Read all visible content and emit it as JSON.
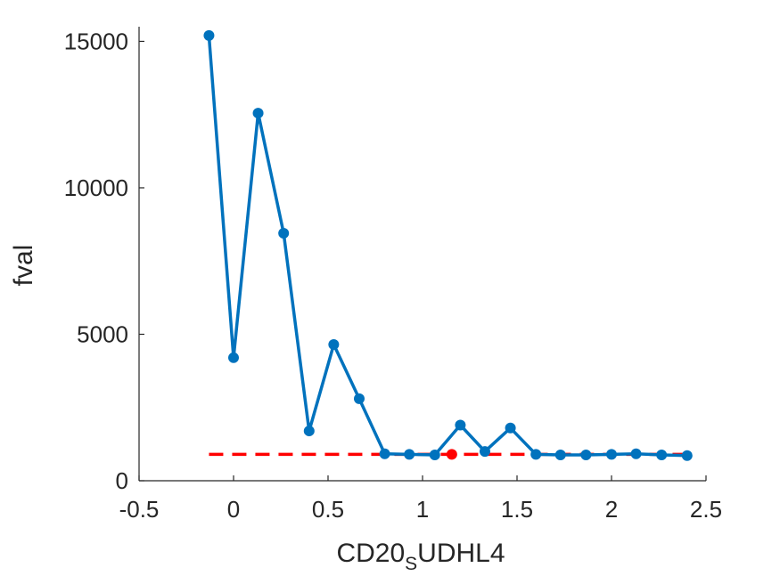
{
  "chart_data": {
    "type": "line",
    "xlabel": {
      "main": "CD20",
      "subscript": "S",
      "rest": "UDHL4"
    },
    "ylabel": "fval",
    "xlim": [
      -0.5,
      2.5
    ],
    "ylim": [
      0,
      15500
    ],
    "xticks": [
      -0.5,
      0,
      0.5,
      1,
      1.5,
      2,
      2.5
    ],
    "xtick_labels": [
      "-0.5",
      "0",
      "0.5",
      "1",
      "1.5",
      "2",
      "2.5"
    ],
    "yticks": [
      0,
      5000,
      10000,
      15000
    ],
    "ytick_labels": [
      "0",
      "5000",
      "10000",
      "15000"
    ],
    "grid": false,
    "colors": {
      "series": "#0072BD",
      "reference": "#FF0000",
      "axis": "#262626"
    },
    "series": [
      {
        "x": [
          -0.13,
          0.0,
          0.13,
          0.265,
          0.4,
          0.53,
          0.665,
          0.8,
          0.93,
          1.065,
          1.2,
          1.33,
          1.465,
          1.6,
          1.73,
          1.865,
          2.0,
          2.13,
          2.265,
          2.4
        ],
        "y": [
          15200,
          4200,
          12550,
          8450,
          1700,
          4650,
          2800,
          920,
          900,
          880,
          1900,
          1000,
          1800,
          900,
          880,
          880,
          900,
          920,
          880,
          860
        ]
      }
    ],
    "reference_line": {
      "y": 900,
      "x_range": [
        -0.13,
        2.4
      ],
      "style": "dashed"
    },
    "highlight_point": {
      "x": 1.155,
      "y": 900
    }
  }
}
